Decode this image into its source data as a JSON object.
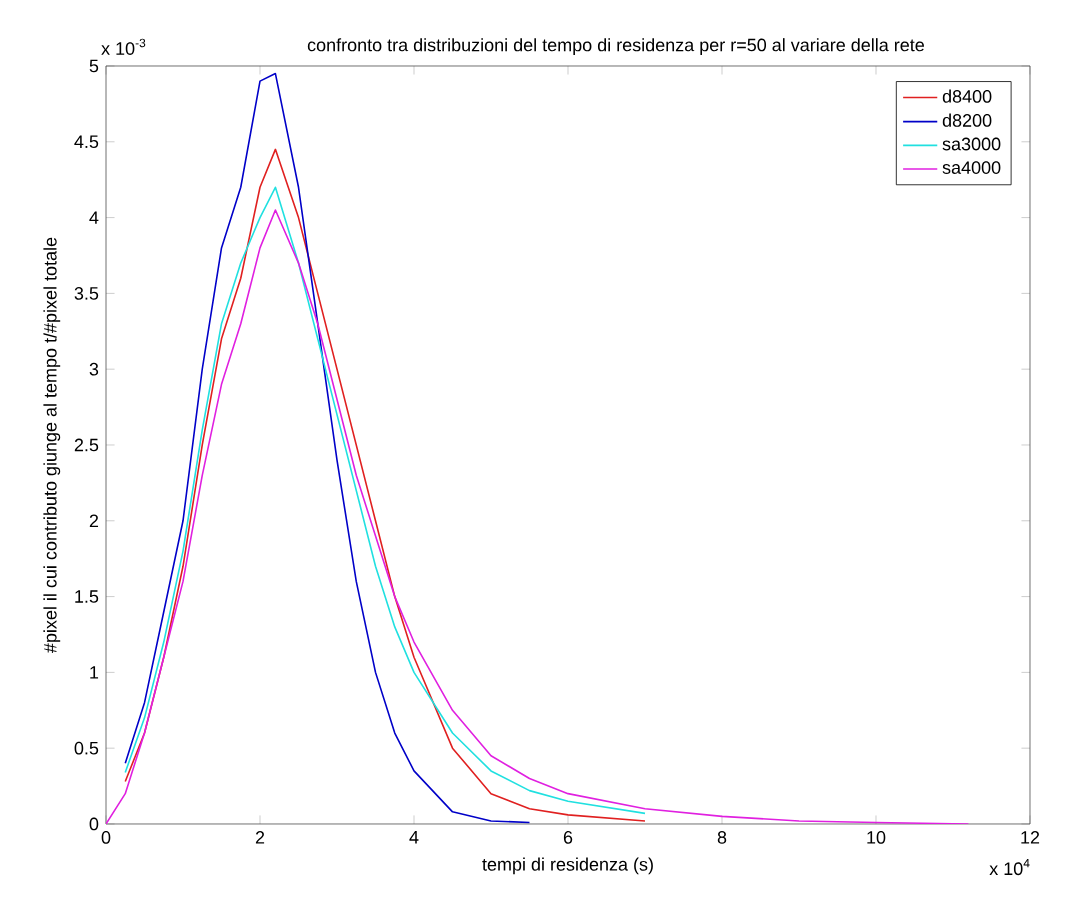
{
  "chart_data": {
    "type": "line",
    "title": "confronto tra distribuzioni del tempo di residenza per r=50 al variare della rete",
    "xlabel": "tempi di residenza (s)",
    "ylabel": "#pixel il cui contributo giunge al tempo t/#pixel totale",
    "annotations": [
      "x 10$^{-3}$",
      "x 10$^{4}$"
    ],
    "xlim": [
      0,
      12
    ],
    "ylim": [
      0,
      5
    ],
    "xticks": [
      0,
      2,
      4,
      6,
      8,
      10,
      12
    ],
    "yticks": [
      0,
      0.5,
      1,
      1.5,
      2,
      2.5,
      3,
      3.5,
      4,
      4.5,
      5
    ],
    "legend": "top right",
    "grid": false,
    "line_style": "solid",
    "series": [
      {
        "name": "d8400",
        "color": "#e02020",
        "x": [
          0.25,
          0.5,
          0.75,
          1,
          1.25,
          1.5,
          1.75,
          2,
          2.2,
          2.5,
          2.75,
          3,
          3.25,
          3.5,
          3.75,
          4,
          4.5,
          5,
          5.5,
          6,
          7
        ],
        "values": [
          0.28,
          0.6,
          1.1,
          1.7,
          2.5,
          3.2,
          3.6,
          4.2,
          4.45,
          4.0,
          3.5,
          3.0,
          2.5,
          2.0,
          1.5,
          1.1,
          0.5,
          0.2,
          0.1,
          0.06,
          0.02
        ]
      },
      {
        "name": "d8200",
        "color": "#0000c8",
        "x": [
          0.25,
          0.5,
          0.75,
          1,
          1.25,
          1.5,
          1.75,
          2,
          2.2,
          2.5,
          2.75,
          3,
          3.25,
          3.5,
          3.75,
          4,
          4.5,
          5,
          5.5
        ],
        "values": [
          0.4,
          0.8,
          1.4,
          2.0,
          3.0,
          3.8,
          4.2,
          4.9,
          4.95,
          4.2,
          3.3,
          2.4,
          1.6,
          1.0,
          0.6,
          0.35,
          0.08,
          0.02,
          0.01
        ]
      },
      {
        "name": "sa3000",
        "color": "#20e0e0",
        "x": [
          0.25,
          0.5,
          0.75,
          1,
          1.25,
          1.5,
          1.75,
          2,
          2.2,
          2.5,
          2.75,
          3,
          3.25,
          3.5,
          3.75,
          4,
          4.5,
          5,
          5.5,
          6,
          7
        ],
        "values": [
          0.34,
          0.7,
          1.2,
          1.8,
          2.6,
          3.3,
          3.7,
          4.0,
          4.2,
          3.7,
          3.2,
          2.7,
          2.2,
          1.7,
          1.3,
          1.0,
          0.6,
          0.35,
          0.22,
          0.15,
          0.07
        ]
      },
      {
        "name": "sa4000",
        "color": "#e020e0",
        "x": [
          0,
          0.25,
          0.5,
          0.75,
          1,
          1.25,
          1.5,
          1.75,
          2,
          2.2,
          2.5,
          2.75,
          3,
          3.25,
          3.5,
          3.75,
          4,
          4.5,
          5,
          5.5,
          6,
          7,
          8,
          9,
          10,
          11.2
        ],
        "values": [
          0,
          0.2,
          0.6,
          1.1,
          1.6,
          2.3,
          2.9,
          3.3,
          3.8,
          4.05,
          3.7,
          3.3,
          2.8,
          2.3,
          1.9,
          1.5,
          1.2,
          0.75,
          0.45,
          0.3,
          0.2,
          0.1,
          0.05,
          0.02,
          0.01,
          0
        ]
      }
    ]
  }
}
